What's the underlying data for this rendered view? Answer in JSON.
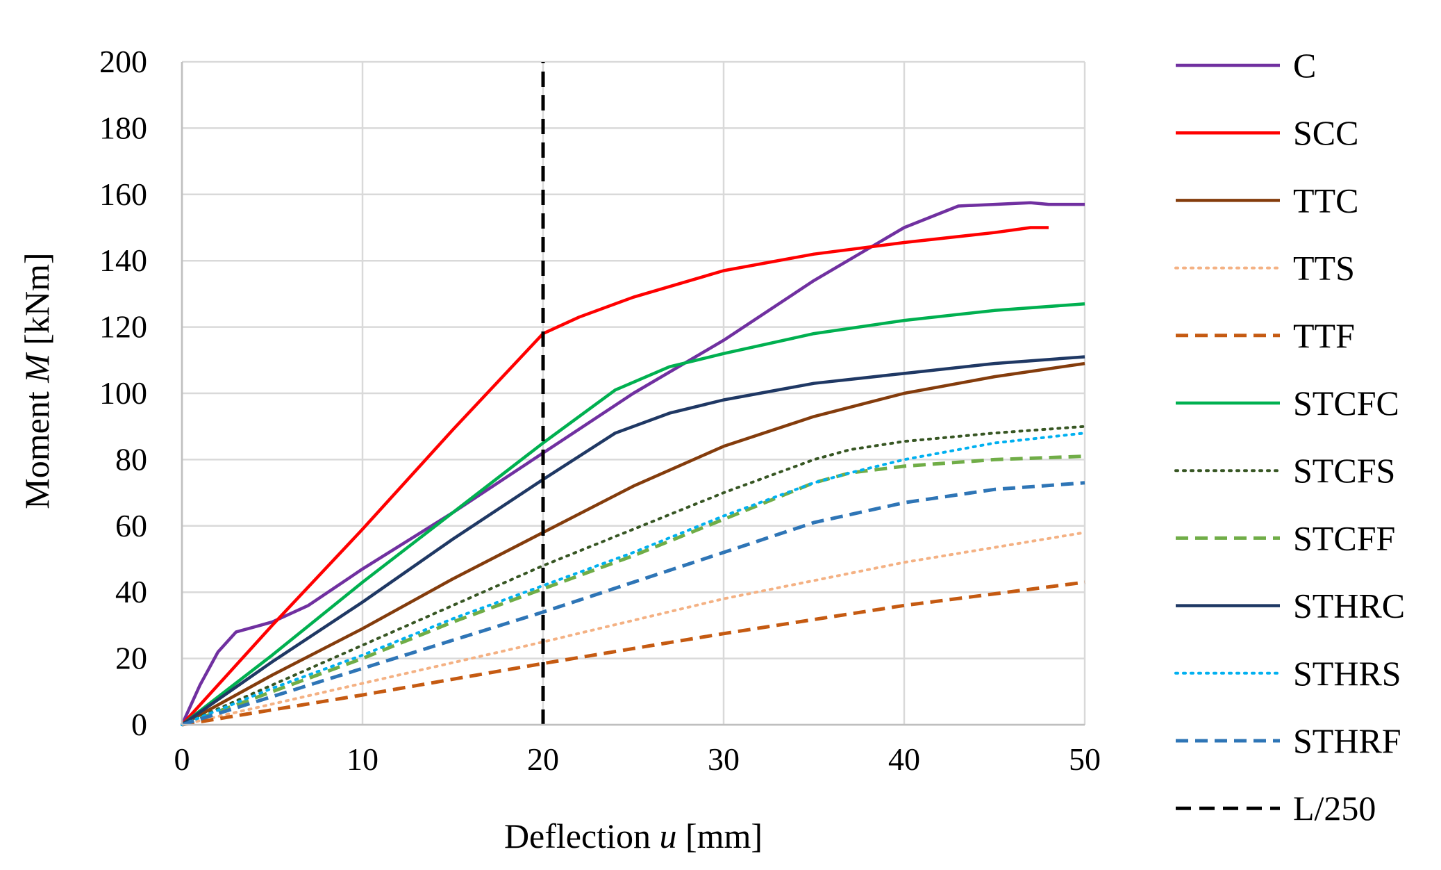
{
  "chart_data": {
    "type": "line",
    "title": "",
    "xlabel_parts": [
      "Deflection ",
      "u",
      " [mm]"
    ],
    "ylabel_parts": [
      "Moment ",
      "M",
      " [kNm]"
    ],
    "xlim": [
      0,
      50
    ],
    "ylim": [
      0,
      200
    ],
    "xticks": [
      0,
      10,
      20,
      30,
      40,
      50
    ],
    "yticks": [
      0,
      20,
      40,
      60,
      80,
      100,
      120,
      140,
      160,
      180,
      200
    ],
    "xtick_labels": [
      "0",
      "10",
      "20",
      "30",
      "40",
      "50"
    ],
    "ytick_labels": [
      "0",
      "20",
      "40",
      "60",
      "80",
      "100",
      "120",
      "140",
      "160",
      "180",
      "200"
    ],
    "grid": true,
    "legend_position": "right",
    "series": [
      {
        "name": "C",
        "color": "#7030A0",
        "style": "solid",
        "x": [
          0,
          1,
          2,
          3,
          4,
          5,
          7,
          10,
          15,
          20,
          25,
          30,
          35,
          40,
          43,
          47,
          48,
          50
        ],
        "y": [
          0,
          12,
          22,
          28,
          29.5,
          31,
          36,
          47,
          64,
          82,
          100,
          116,
          134,
          150,
          156.5,
          157.5,
          157,
          157
        ]
      },
      {
        "name": "SCC",
        "color": "#FF0000",
        "style": "solid",
        "x": [
          0,
          5,
          10,
          15,
          20,
          22,
          25,
          30,
          35,
          40,
          45,
          47,
          48
        ],
        "y": [
          0,
          30,
          59,
          89,
          118,
          123,
          129,
          137,
          142,
          145.5,
          148.5,
          150,
          150
        ]
      },
      {
        "name": "TTC",
        "color": "#843C0C",
        "style": "solid",
        "x": [
          0,
          5,
          10,
          15,
          20,
          25,
          30,
          35,
          40,
          45,
          50
        ],
        "y": [
          0,
          15,
          29,
          44,
          58,
          72,
          84,
          93,
          100,
          105,
          109
        ]
      },
      {
        "name": "TTS",
        "color": "#F4B183",
        "style": "dotted",
        "x": [
          0,
          10,
          20,
          30,
          40,
          50
        ],
        "y": [
          0,
          12.5,
          25,
          38,
          49,
          58
        ]
      },
      {
        "name": "TTF",
        "color": "#C55A11",
        "style": "dashed",
        "x": [
          0,
          10,
          20,
          30,
          40,
          50
        ],
        "y": [
          0,
          9,
          18.5,
          27.5,
          36,
          43
        ]
      },
      {
        "name": "STCFC",
        "color": "#00B050",
        "style": "solid",
        "x": [
          0,
          5,
          10,
          15,
          20,
          24,
          27,
          30,
          35,
          40,
          45,
          50
        ],
        "y": [
          0,
          21,
          43,
          64,
          85,
          101,
          108,
          112,
          118,
          122,
          125,
          127
        ]
      },
      {
        "name": "STCFS",
        "color": "#375623",
        "style": "dotted",
        "x": [
          0,
          5,
          10,
          15,
          20,
          25,
          30,
          35,
          37,
          40,
          45,
          50
        ],
        "y": [
          0,
          12,
          24,
          36,
          48,
          59,
          70,
          80,
          83,
          85.5,
          88,
          90
        ]
      },
      {
        "name": "STCFF",
        "color": "#70AD47",
        "style": "dashed",
        "x": [
          0,
          5,
          10,
          15,
          20,
          25,
          30,
          35,
          37,
          40,
          45,
          50
        ],
        "y": [
          0,
          10,
          20,
          31,
          41,
          51,
          62,
          73,
          76,
          78,
          80,
          81
        ]
      },
      {
        "name": "STHRC",
        "color": "#1F3864",
        "style": "solid",
        "x": [
          0,
          5,
          10,
          15,
          20,
          24,
          27,
          30,
          35,
          40,
          45,
          50
        ],
        "y": [
          0,
          19,
          37,
          56,
          74,
          88,
          94,
          98,
          103,
          106,
          109,
          111
        ]
      },
      {
        "name": "STHRS",
        "color": "#00B0F0",
        "style": "dotted",
        "x": [
          0,
          5,
          10,
          15,
          20,
          25,
          30,
          35,
          37,
          40,
          45,
          50
        ],
        "y": [
          0,
          11,
          21,
          32,
          42,
          52,
          63,
          73,
          76,
          80,
          85,
          88
        ]
      },
      {
        "name": "STHRF",
        "color": "#2E75B6",
        "style": "dashed",
        "x": [
          0,
          10,
          20,
          25,
          30,
          35,
          40,
          45,
          50
        ],
        "y": [
          0,
          17,
          34,
          43,
          52,
          61,
          67,
          71,
          73
        ]
      },
      {
        "name": "L/250",
        "color": "#000000",
        "style": "longdash",
        "x": [
          20,
          20
        ],
        "y": [
          0,
          200
        ]
      }
    ]
  }
}
